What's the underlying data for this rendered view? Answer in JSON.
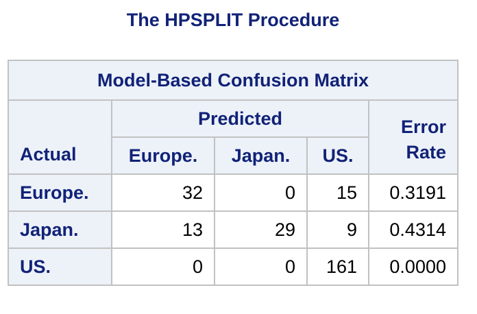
{
  "title": "The HPSPLIT Procedure",
  "table": {
    "caption": "Model-Based Confusion Matrix",
    "predicted_label": "Predicted",
    "actual_label": "Actual",
    "error_rate_label_line1": "Error",
    "error_rate_label_line2": "Rate",
    "columns": [
      "Europe.",
      "Japan.",
      "US."
    ],
    "rows": [
      {
        "label": "Europe.",
        "values": [
          "32",
          "0",
          "15"
        ],
        "error_rate": "0.3191"
      },
      {
        "label": "Japan.",
        "values": [
          "13",
          "29",
          "9"
        ],
        "error_rate": "0.4314"
      },
      {
        "label": "US.",
        "values": [
          "0",
          "0",
          "161"
        ],
        "error_rate": "0.0000"
      }
    ]
  },
  "colors": {
    "header_text": "#112277",
    "header_bg": "#edf2f9",
    "grid": "#c1c1c1"
  }
}
